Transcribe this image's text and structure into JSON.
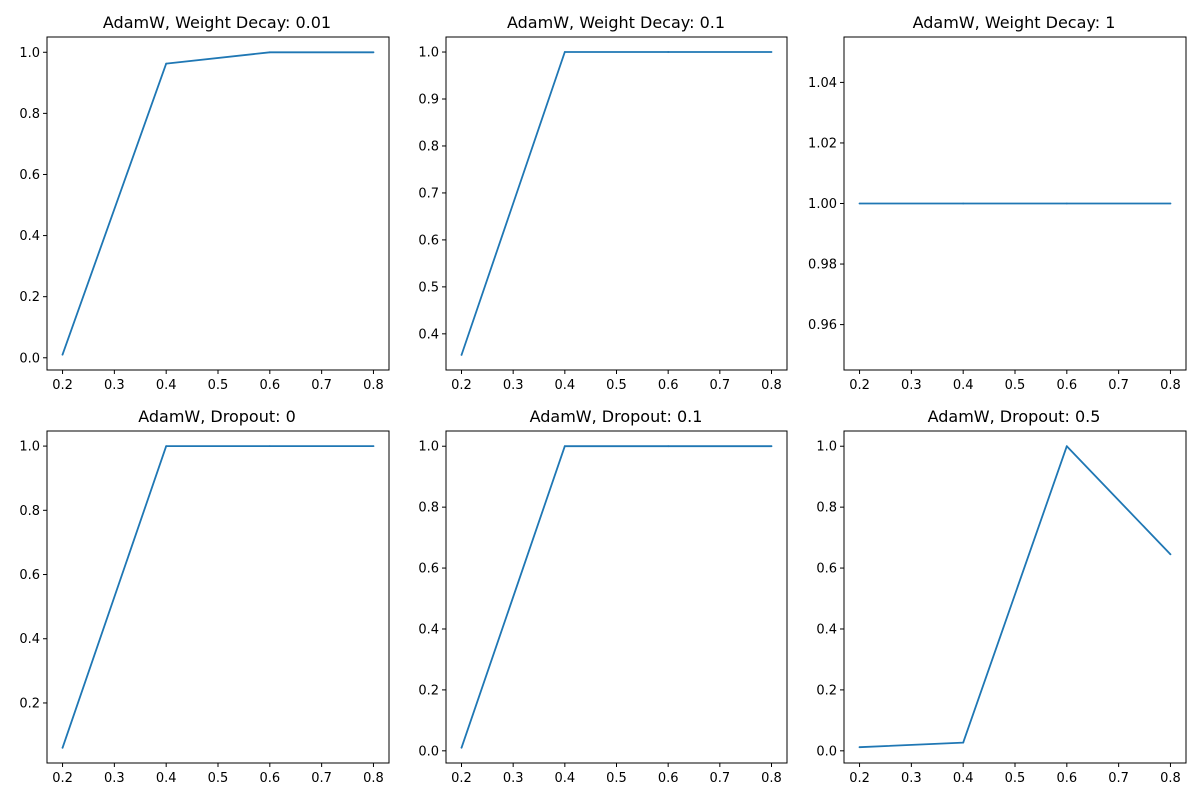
{
  "figure": {
    "line_color": "#1f77b4"
  },
  "chart_data": [
    {
      "type": "line",
      "title": "AdamW, Weight Decay: 0.01",
      "xlabel": "",
      "ylabel": "",
      "x": [
        0.2,
        0.4,
        0.6,
        0.8
      ],
      "series": [
        {
          "values": [
            0.01,
            0.963,
            1.0,
            1.0
          ]
        }
      ],
      "xlim": [
        0.17,
        0.83
      ],
      "ylim": [
        -0.04,
        1.05
      ],
      "xticks": [
        "0.2",
        "0.3",
        "0.4",
        "0.5",
        "0.6",
        "0.7",
        "0.8"
      ],
      "xtick_values": [
        0.2,
        0.3,
        0.4,
        0.5,
        0.6,
        0.7,
        0.8
      ],
      "yticks": [
        "0.0",
        "0.2",
        "0.4",
        "0.6",
        "0.8",
        "1.0"
      ],
      "ytick_values": [
        0.0,
        0.2,
        0.4,
        0.6,
        0.8,
        1.0
      ],
      "grid": false,
      "legend": "none"
    },
    {
      "type": "line",
      "title": "AdamW, Weight Decay: 0.1",
      "xlabel": "",
      "ylabel": "",
      "x": [
        0.2,
        0.4,
        0.6,
        0.8
      ],
      "series": [
        {
          "values": [
            0.355,
            1.0,
            1.0,
            1.0
          ]
        }
      ],
      "xlim": [
        0.17,
        0.83
      ],
      "ylim": [
        0.323,
        1.032
      ],
      "xticks": [
        "0.2",
        "0.3",
        "0.4",
        "0.5",
        "0.6",
        "0.7",
        "0.8"
      ],
      "xtick_values": [
        0.2,
        0.3,
        0.4,
        0.5,
        0.6,
        0.7,
        0.8
      ],
      "yticks": [
        "0.4",
        "0.5",
        "0.6",
        "0.7",
        "0.8",
        "0.9",
        "1.0"
      ],
      "ytick_values": [
        0.4,
        0.5,
        0.6,
        0.7,
        0.8,
        0.9,
        1.0
      ],
      "grid": false,
      "legend": "none"
    },
    {
      "type": "line",
      "title": "AdamW, Weight Decay: 1",
      "xlabel": "",
      "ylabel": "",
      "x": [
        0.2,
        0.4,
        0.6,
        0.8
      ],
      "series": [
        {
          "values": [
            1.0,
            1.0,
            1.0,
            1.0
          ]
        }
      ],
      "xlim": [
        0.17,
        0.83
      ],
      "ylim": [
        0.945,
        1.055
      ],
      "xticks": [
        "0.2",
        "0.3",
        "0.4",
        "0.5",
        "0.6",
        "0.7",
        "0.8"
      ],
      "xtick_values": [
        0.2,
        0.3,
        0.4,
        0.5,
        0.6,
        0.7,
        0.8
      ],
      "yticks": [
        "0.96",
        "0.98",
        "1.00",
        "1.02",
        "1.04"
      ],
      "ytick_values": [
        0.96,
        0.98,
        1.0,
        1.02,
        1.04
      ],
      "grid": false,
      "legend": "none"
    },
    {
      "type": "line",
      "title": "AdamW, Dropout: 0",
      "xlabel": "",
      "ylabel": "",
      "x": [
        0.2,
        0.4,
        0.6,
        0.8
      ],
      "series": [
        {
          "values": [
            0.06,
            1.0,
            1.0,
            1.0
          ]
        }
      ],
      "xlim": [
        0.17,
        0.83
      ],
      "ylim": [
        0.013,
        1.047
      ],
      "xticks": [
        "0.2",
        "0.3",
        "0.4",
        "0.5",
        "0.6",
        "0.7",
        "0.8"
      ],
      "xtick_values": [
        0.2,
        0.3,
        0.4,
        0.5,
        0.6,
        0.7,
        0.8
      ],
      "yticks": [
        "0.2",
        "0.4",
        "0.6",
        "0.8",
        "1.0"
      ],
      "ytick_values": [
        0.2,
        0.4,
        0.6,
        0.8,
        1.0
      ],
      "grid": false,
      "legend": "none"
    },
    {
      "type": "line",
      "title": "AdamW, Dropout: 0.1",
      "xlabel": "",
      "ylabel": "",
      "x": [
        0.2,
        0.4,
        0.6,
        0.8
      ],
      "series": [
        {
          "values": [
            0.01,
            1.0,
            1.0,
            1.0
          ]
        }
      ],
      "xlim": [
        0.17,
        0.83
      ],
      "ylim": [
        -0.04,
        1.05
      ],
      "xticks": [
        "0.2",
        "0.3",
        "0.4",
        "0.5",
        "0.6",
        "0.7",
        "0.8"
      ],
      "xtick_values": [
        0.2,
        0.3,
        0.4,
        0.5,
        0.6,
        0.7,
        0.8
      ],
      "yticks": [
        "0.0",
        "0.2",
        "0.4",
        "0.6",
        "0.8",
        "1.0"
      ],
      "ytick_values": [
        0.0,
        0.2,
        0.4,
        0.6,
        0.8,
        1.0
      ],
      "grid": false,
      "legend": "none"
    },
    {
      "type": "line",
      "title": "AdamW, Dropout: 0.5",
      "xlabel": "",
      "ylabel": "",
      "x": [
        0.2,
        0.4,
        0.6,
        0.8
      ],
      "series": [
        {
          "values": [
            0.012,
            0.027,
            1.0,
            0.645
          ]
        }
      ],
      "xlim": [
        0.17,
        0.83
      ],
      "ylim": [
        -0.04,
        1.05
      ],
      "xticks": [
        "0.2",
        "0.3",
        "0.4",
        "0.5",
        "0.6",
        "0.7",
        "0.8"
      ],
      "xtick_values": [
        0.2,
        0.3,
        0.4,
        0.5,
        0.6,
        0.7,
        0.8
      ],
      "yticks": [
        "0.0",
        "0.2",
        "0.4",
        "0.6",
        "0.8",
        "1.0"
      ],
      "ytick_values": [
        0.0,
        0.2,
        0.4,
        0.6,
        0.8,
        1.0
      ],
      "grid": false,
      "legend": "none"
    }
  ]
}
